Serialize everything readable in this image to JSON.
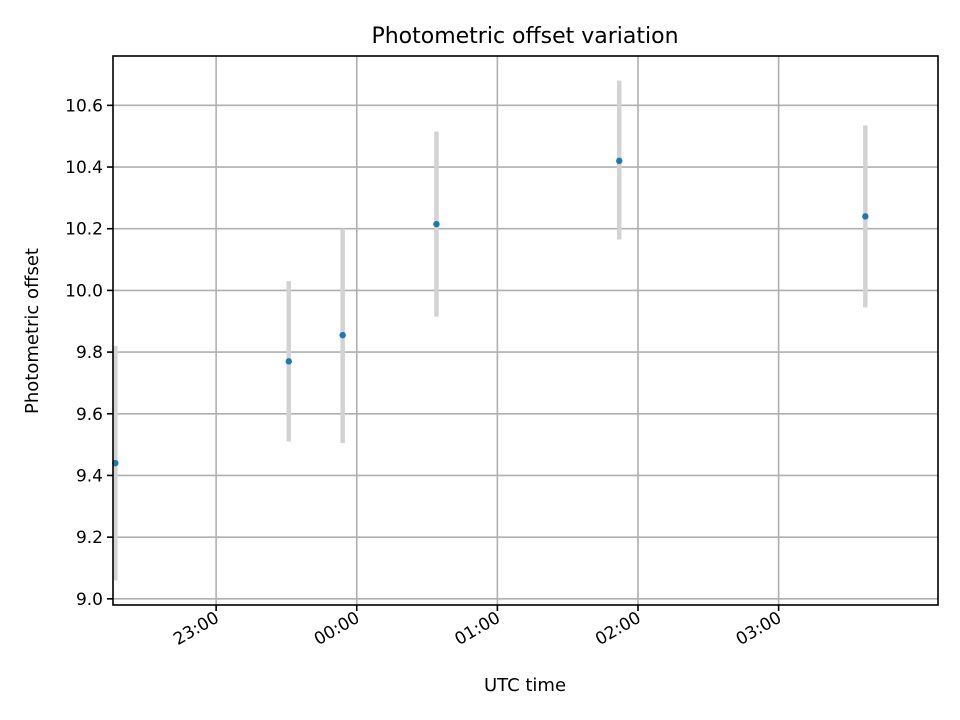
{
  "chart_data": {
    "type": "scatter",
    "title": "Photometric offset variation",
    "xlabel": "UTC time",
    "ylabel": "Photometric offset",
    "x_axis_kind": "time",
    "xlim": [
      "22:16",
      "04:08"
    ],
    "ylim": [
      8.98,
      10.76
    ],
    "xticks": [
      "23:00",
      "00:00",
      "01:00",
      "02:00",
      "03:00"
    ],
    "yticks": [
      9.0,
      9.2,
      9.4,
      9.6,
      9.8,
      10.0,
      10.2,
      10.4,
      10.6
    ],
    "ytick_labels": [
      "9.0",
      "9.2",
      "9.4",
      "9.6",
      "9.8",
      "10.0",
      "10.2",
      "10.4",
      "10.6"
    ],
    "grid": true,
    "points": [
      {
        "x": "22:17",
        "y": 9.44,
        "yerr_low": 9.06,
        "yerr_high": 9.82
      },
      {
        "x": "23:31",
        "y": 9.77,
        "yerr_low": 9.51,
        "yerr_high": 10.03
      },
      {
        "x": "23:54",
        "y": 9.855,
        "yerr_low": 9.505,
        "yerr_high": 10.2
      },
      {
        "x": "00:34",
        "y": 10.215,
        "yerr_low": 9.915,
        "yerr_high": 10.515
      },
      {
        "x": "01:52",
        "y": 10.42,
        "yerr_low": 10.165,
        "yerr_high": 10.68
      },
      {
        "x": "03:37",
        "y": 10.24,
        "yerr_low": 9.945,
        "yerr_high": 10.535
      }
    ],
    "colors": {
      "point": "#1f77b4",
      "errorbar": "#d3d3d3",
      "grid": "#b0b0b0"
    }
  }
}
